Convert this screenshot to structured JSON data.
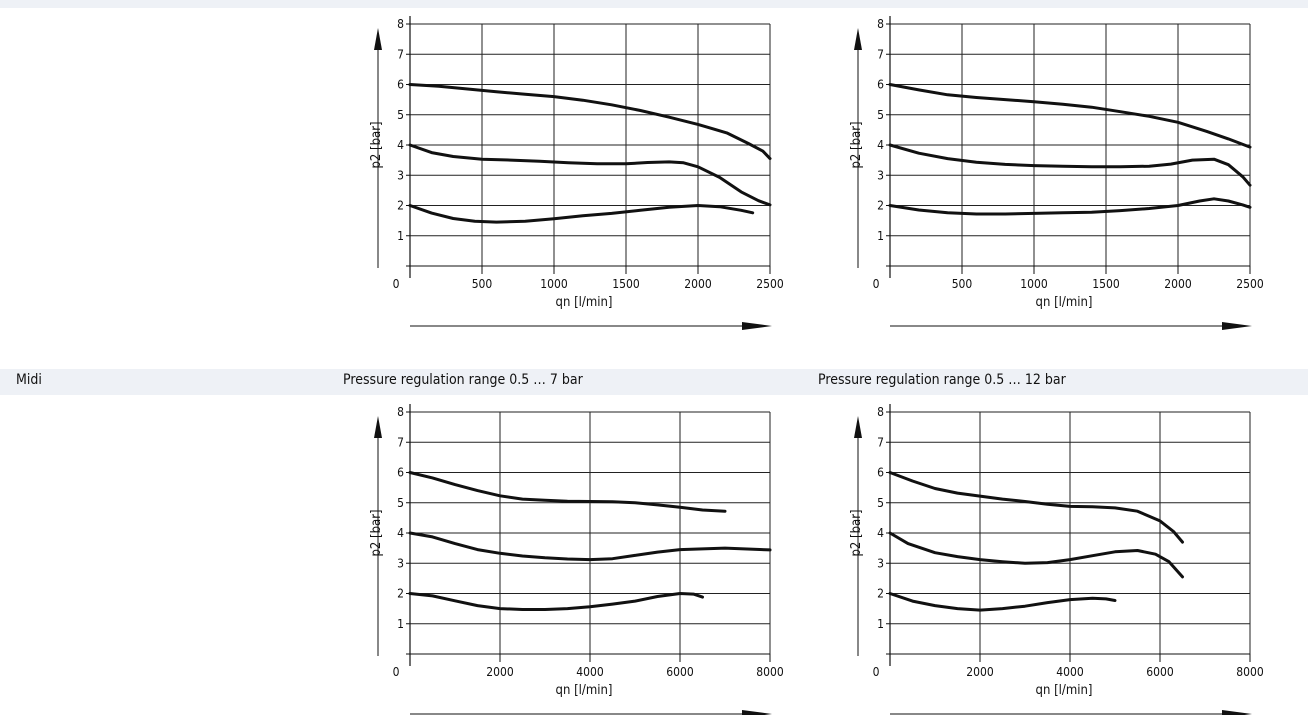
{
  "row": {
    "label": "Midi"
  },
  "columns": [
    {
      "title": ""
    },
    {
      "title": ""
    },
    {
      "title": "Pressure regulation range 0.5 … 7 bar"
    },
    {
      "title": "Pressure regulation range 0.5 … 12 bar"
    }
  ],
  "chart_data": [
    {
      "type": "line",
      "xlabel": "qn [l/min]",
      "ylabel": "p2 [bar]",
      "xlim": [
        0,
        2500
      ],
      "ylim": [
        0,
        8
      ],
      "xticks": [
        0,
        500,
        1000,
        1500,
        2000,
        2500
      ],
      "yticks": [
        1,
        2,
        3,
        4,
        5,
        6,
        7,
        8
      ],
      "grid": true,
      "series": [
        {
          "values": [
            [
              0,
              6
            ],
            [
              200,
              5.94
            ],
            [
              400,
              5.85
            ],
            [
              600,
              5.76
            ],
            [
              800,
              5.68
            ],
            [
              1000,
              5.6
            ],
            [
              1200,
              5.48
            ],
            [
              1400,
              5.33
            ],
            [
              1600,
              5.14
            ],
            [
              1800,
              4.92
            ],
            [
              2000,
              4.68
            ],
            [
              2200,
              4.4
            ],
            [
              2350,
              4.05
            ],
            [
              2450,
              3.8
            ],
            [
              2500,
              3.55
            ]
          ]
        },
        {
          "values": [
            [
              0,
              4
            ],
            [
              150,
              3.75
            ],
            [
              300,
              3.62
            ],
            [
              500,
              3.53
            ],
            [
              700,
              3.5
            ],
            [
              900,
              3.46
            ],
            [
              1100,
              3.41
            ],
            [
              1300,
              3.38
            ],
            [
              1500,
              3.38
            ],
            [
              1650,
              3.42
            ],
            [
              1800,
              3.44
            ],
            [
              1900,
              3.41
            ],
            [
              2000,
              3.28
            ],
            [
              2150,
              2.93
            ],
            [
              2300,
              2.45
            ],
            [
              2420,
              2.16
            ],
            [
              2500,
              2.02
            ]
          ]
        },
        {
          "values": [
            [
              0,
              2
            ],
            [
              150,
              1.75
            ],
            [
              300,
              1.57
            ],
            [
              450,
              1.48
            ],
            [
              600,
              1.45
            ],
            [
              800,
              1.48
            ],
            [
              1000,
              1.56
            ],
            [
              1200,
              1.66
            ],
            [
              1400,
              1.74
            ],
            [
              1600,
              1.84
            ],
            [
              1800,
              1.94
            ],
            [
              2000,
              2
            ],
            [
              2150,
              1.96
            ],
            [
              2300,
              1.84
            ],
            [
              2380,
              1.76
            ]
          ]
        }
      ]
    },
    {
      "type": "line",
      "xlabel": "qn [l/min]",
      "ylabel": "p2 [bar]",
      "xlim": [
        0,
        2500
      ],
      "ylim": [
        0,
        8
      ],
      "xticks": [
        0,
        500,
        1000,
        1500,
        2000,
        2500
      ],
      "yticks": [
        1,
        2,
        3,
        4,
        5,
        6,
        7,
        8
      ],
      "grid": true,
      "series": [
        {
          "values": [
            [
              0,
              6
            ],
            [
              200,
              5.82
            ],
            [
              400,
              5.66
            ],
            [
              600,
              5.57
            ],
            [
              800,
              5.5
            ],
            [
              1000,
              5.43
            ],
            [
              1200,
              5.35
            ],
            [
              1400,
              5.25
            ],
            [
              1600,
              5.1
            ],
            [
              1800,
              4.95
            ],
            [
              2000,
              4.75
            ],
            [
              2200,
              4.45
            ],
            [
              2350,
              4.2
            ],
            [
              2500,
              3.93
            ]
          ]
        },
        {
          "values": [
            [
              0,
              4
            ],
            [
              200,
              3.73
            ],
            [
              400,
              3.55
            ],
            [
              600,
              3.43
            ],
            [
              800,
              3.36
            ],
            [
              1000,
              3.32
            ],
            [
              1200,
              3.3
            ],
            [
              1400,
              3.28
            ],
            [
              1600,
              3.28
            ],
            [
              1800,
              3.3
            ],
            [
              1950,
              3.37
            ],
            [
              2100,
              3.5
            ],
            [
              2250,
              3.53
            ],
            [
              2350,
              3.35
            ],
            [
              2450,
              2.95
            ],
            [
              2500,
              2.67
            ]
          ]
        },
        {
          "values": [
            [
              0,
              2
            ],
            [
              200,
              1.85
            ],
            [
              400,
              1.76
            ],
            [
              600,
              1.72
            ],
            [
              800,
              1.72
            ],
            [
              1000,
              1.74
            ],
            [
              1200,
              1.76
            ],
            [
              1400,
              1.78
            ],
            [
              1600,
              1.83
            ],
            [
              1800,
              1.9
            ],
            [
              2000,
              2
            ],
            [
              2150,
              2.15
            ],
            [
              2250,
              2.22
            ],
            [
              2350,
              2.15
            ],
            [
              2450,
              2.02
            ],
            [
              2500,
              1.94
            ]
          ]
        }
      ]
    },
    {
      "type": "line",
      "xlabel": "qn [l/min]",
      "ylabel": "p2 [bar]",
      "xlim": [
        0,
        8000
      ],
      "ylim": [
        0,
        8
      ],
      "xticks": [
        0,
        2000,
        4000,
        6000,
        8000
      ],
      "yticks": [
        1,
        2,
        3,
        4,
        5,
        6,
        7,
        8
      ],
      "grid": true,
      "series": [
        {
          "values": [
            [
              0,
              6
            ],
            [
              500,
              5.82
            ],
            [
              1000,
              5.6
            ],
            [
              1500,
              5.4
            ],
            [
              2000,
              5.23
            ],
            [
              2500,
              5.12
            ],
            [
              3000,
              5.08
            ],
            [
              3500,
              5.05
            ],
            [
              4000,
              5.04
            ],
            [
              4500,
              5.03
            ],
            [
              5000,
              5
            ],
            [
              5500,
              4.93
            ],
            [
              6000,
              4.85
            ],
            [
              6500,
              4.76
            ],
            [
              7000,
              4.72
            ]
          ]
        },
        {
          "values": [
            [
              0,
              4
            ],
            [
              500,
              3.87
            ],
            [
              1000,
              3.65
            ],
            [
              1500,
              3.45
            ],
            [
              2000,
              3.33
            ],
            [
              2500,
              3.24
            ],
            [
              3000,
              3.18
            ],
            [
              3500,
              3.14
            ],
            [
              4000,
              3.12
            ],
            [
              4500,
              3.15
            ],
            [
              5000,
              3.26
            ],
            [
              5500,
              3.37
            ],
            [
              6000,
              3.45
            ],
            [
              7000,
              3.5
            ],
            [
              8000,
              3.44
            ]
          ]
        },
        {
          "values": [
            [
              0,
              2
            ],
            [
              500,
              1.92
            ],
            [
              1000,
              1.76
            ],
            [
              1500,
              1.6
            ],
            [
              2000,
              1.5
            ],
            [
              2500,
              1.47
            ],
            [
              3000,
              1.47
            ],
            [
              3500,
              1.5
            ],
            [
              4000,
              1.56
            ],
            [
              4500,
              1.65
            ],
            [
              5000,
              1.75
            ],
            [
              5500,
              1.9
            ],
            [
              6000,
              2
            ],
            [
              6300,
              1.98
            ],
            [
              6500,
              1.88
            ]
          ]
        }
      ]
    },
    {
      "type": "line",
      "xlabel": "qn [l/min]",
      "ylabel": "p2 [bar]",
      "xlim": [
        0,
        8000
      ],
      "ylim": [
        0,
        8
      ],
      "xticks": [
        0,
        2000,
        4000,
        6000,
        8000
      ],
      "yticks": [
        1,
        2,
        3,
        4,
        5,
        6,
        7,
        8
      ],
      "grid": true,
      "series": [
        {
          "values": [
            [
              0,
              6
            ],
            [
              500,
              5.72
            ],
            [
              1000,
              5.47
            ],
            [
              1500,
              5.32
            ],
            [
              2000,
              5.22
            ],
            [
              2500,
              5.12
            ],
            [
              3000,
              5.04
            ],
            [
              3500,
              4.95
            ],
            [
              4000,
              4.88
            ],
            [
              4500,
              4.87
            ],
            [
              5000,
              4.83
            ],
            [
              5500,
              4.72
            ],
            [
              6000,
              4.4
            ],
            [
              6300,
              4.05
            ],
            [
              6500,
              3.7
            ]
          ]
        },
        {
          "values": [
            [
              0,
              4
            ],
            [
              400,
              3.65
            ],
            [
              1000,
              3.35
            ],
            [
              1500,
              3.22
            ],
            [
              2000,
              3.12
            ],
            [
              2500,
              3.05
            ],
            [
              3000,
              3
            ],
            [
              3500,
              3.02
            ],
            [
              4000,
              3.12
            ],
            [
              4500,
              3.25
            ],
            [
              5000,
              3.38
            ],
            [
              5500,
              3.42
            ],
            [
              5900,
              3.3
            ],
            [
              6200,
              3.05
            ],
            [
              6500,
              2.55
            ]
          ]
        },
        {
          "values": [
            [
              0,
              2
            ],
            [
              500,
              1.75
            ],
            [
              1000,
              1.6
            ],
            [
              1500,
              1.5
            ],
            [
              2000,
              1.45
            ],
            [
              2500,
              1.5
            ],
            [
              3000,
              1.58
            ],
            [
              3500,
              1.7
            ],
            [
              4000,
              1.8
            ],
            [
              4500,
              1.84
            ],
            [
              4800,
              1.82
            ],
            [
              5000,
              1.77
            ]
          ]
        }
      ]
    }
  ]
}
